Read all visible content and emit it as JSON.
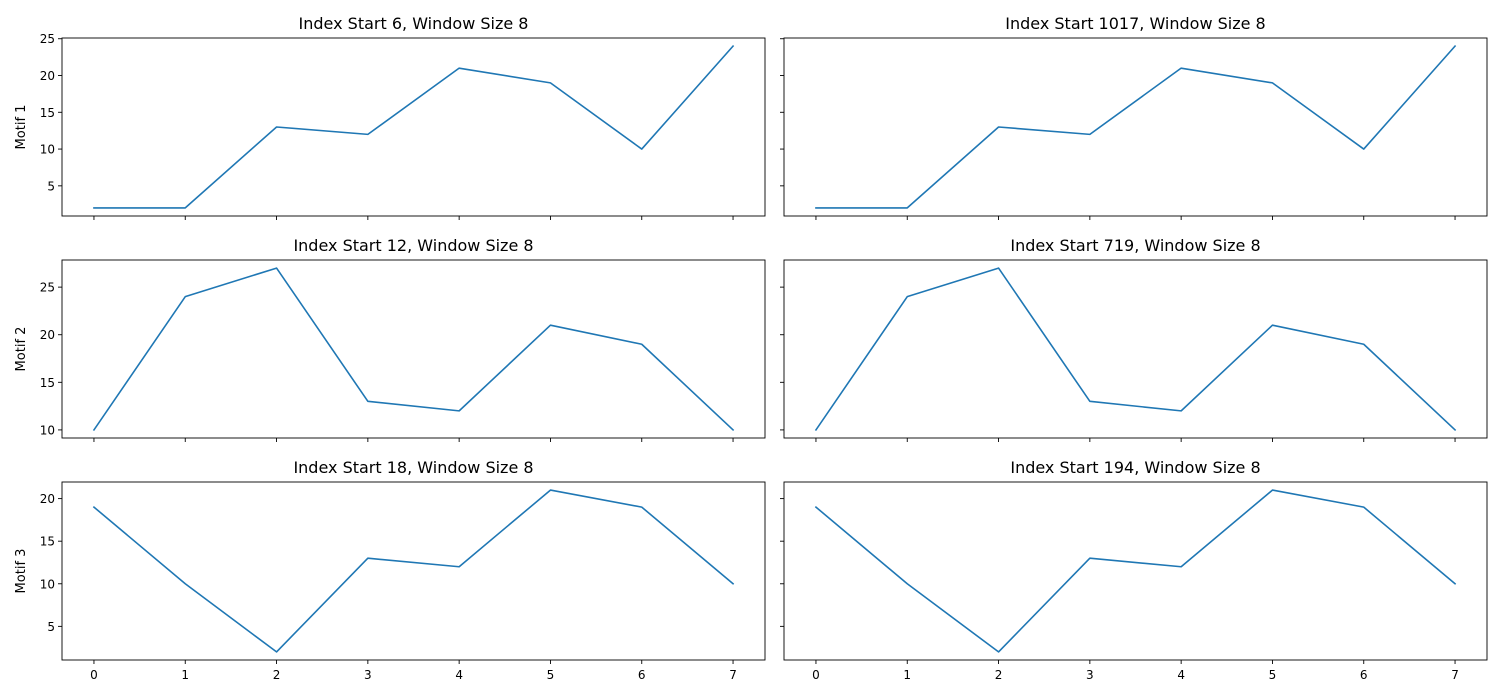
{
  "figure": {
    "line_color": "#1f77b4",
    "x_ticks": [
      "0",
      "1",
      "2",
      "3",
      "4",
      "5",
      "6",
      "7"
    ]
  },
  "chart_data": [
    {
      "type": "line",
      "title": "Index Start 6, Window Size 8",
      "ylabel": "Motif 1",
      "x": [
        0,
        1,
        2,
        3,
        4,
        5,
        6,
        7
      ],
      "series": [
        {
          "values": [
            2,
            2,
            13,
            12,
            21,
            19,
            10,
            24
          ]
        }
      ],
      "ylim": [
        0.9,
        25.1
      ],
      "yticks": [
        5,
        10,
        15,
        20,
        25
      ],
      "xlim": [
        -0.35,
        7.35
      ],
      "show_xtick_labels": false,
      "show_ytick_labels": true,
      "grid": false
    },
    {
      "type": "line",
      "title": "Index Start 1017, Window Size 8",
      "ylabel": "",
      "x": [
        0,
        1,
        2,
        3,
        4,
        5,
        6,
        7
      ],
      "series": [
        {
          "values": [
            2,
            2,
            13,
            12,
            21,
            19,
            10,
            24
          ]
        }
      ],
      "ylim": [
        0.9,
        25.1
      ],
      "yticks": [
        5,
        10,
        15,
        20,
        25
      ],
      "xlim": [
        -0.35,
        7.35
      ],
      "show_xtick_labels": false,
      "show_ytick_labels": false,
      "grid": false
    },
    {
      "type": "line",
      "title": "Index Start 12, Window Size 8",
      "ylabel": "Motif 2",
      "x": [
        0,
        1,
        2,
        3,
        4,
        5,
        6,
        7
      ],
      "series": [
        {
          "values": [
            10,
            24,
            27,
            13,
            12,
            21,
            19,
            10
          ]
        }
      ],
      "ylim": [
        9.15,
        27.85
      ],
      "yticks": [
        10,
        15,
        20,
        25
      ],
      "xlim": [
        -0.35,
        7.35
      ],
      "show_xtick_labels": false,
      "show_ytick_labels": true,
      "grid": false
    },
    {
      "type": "line",
      "title": "Index Start 719, Window Size 8",
      "ylabel": "",
      "x": [
        0,
        1,
        2,
        3,
        4,
        5,
        6,
        7
      ],
      "series": [
        {
          "values": [
            10,
            24,
            27,
            13,
            12,
            21,
            19,
            10
          ]
        }
      ],
      "ylim": [
        9.15,
        27.85
      ],
      "yticks": [
        10,
        15,
        20,
        25
      ],
      "xlim": [
        -0.35,
        7.35
      ],
      "show_xtick_labels": false,
      "show_ytick_labels": false,
      "grid": false
    },
    {
      "type": "line",
      "title": "Index Start 18, Window Size 8",
      "ylabel": "Motif 3",
      "x": [
        0,
        1,
        2,
        3,
        4,
        5,
        6,
        7
      ],
      "series": [
        {
          "values": [
            19,
            10,
            2,
            13,
            12,
            21,
            19,
            10
          ]
        }
      ],
      "ylim": [
        1.05,
        21.95
      ],
      "yticks": [
        5,
        10,
        15,
        20
      ],
      "xlim": [
        -0.35,
        7.35
      ],
      "show_xtick_labels": true,
      "show_ytick_labels": true,
      "grid": false
    },
    {
      "type": "line",
      "title": "Index Start 194, Window Size 8",
      "ylabel": "",
      "x": [
        0,
        1,
        2,
        3,
        4,
        5,
        6,
        7
      ],
      "series": [
        {
          "values": [
            19,
            10,
            2,
            13,
            12,
            21,
            19,
            10
          ]
        }
      ],
      "ylim": [
        1.05,
        21.95
      ],
      "yticks": [
        5,
        10,
        15,
        20
      ],
      "xlim": [
        -0.35,
        7.35
      ],
      "show_xtick_labels": true,
      "show_ytick_labels": false,
      "grid": false
    }
  ]
}
